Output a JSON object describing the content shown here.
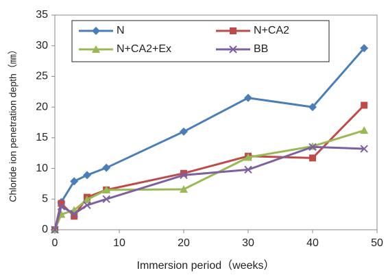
{
  "chart_data": {
    "type": "line",
    "x_label": "Immersion period（weeks）",
    "y_label": "Chloride ion penetration depth（㎜）",
    "x": [
      0,
      1,
      3,
      5,
      8,
      20,
      30,
      40,
      48
    ],
    "series": [
      {
        "name": "N",
        "color": "#4a7ebb",
        "marker": "diamond",
        "values": [
          0,
          4.5,
          7.9,
          8.9,
          10.1,
          16.0,
          21.5,
          20.0,
          29.6
        ]
      },
      {
        "name": "N+CA2",
        "color": "#be4b48",
        "marker": "square",
        "values": [
          0,
          4.3,
          2.2,
          5.3,
          6.5,
          9.2,
          12.0,
          11.7,
          20.3
        ]
      },
      {
        "name": "N+CA2+Ex",
        "color": "#98b954",
        "marker": "triangle",
        "values": [
          0,
          2.5,
          3.2,
          4.9,
          6.5,
          6.6,
          11.8,
          13.6,
          16.2
        ]
      },
      {
        "name": "BB",
        "color": "#7d60a0",
        "marker": "x",
        "values": [
          0,
          3.8,
          2.6,
          4.0,
          5.0,
          8.9,
          9.8,
          13.5,
          13.2
        ]
      }
    ],
    "xlim": [
      0,
      50
    ],
    "xticks": [
      0,
      10,
      20,
      30,
      40,
      50
    ],
    "ylim": [
      0,
      35
    ],
    "yticks": [
      0,
      5,
      10,
      15,
      20,
      25,
      30,
      35
    ],
    "grid": false
  }
}
